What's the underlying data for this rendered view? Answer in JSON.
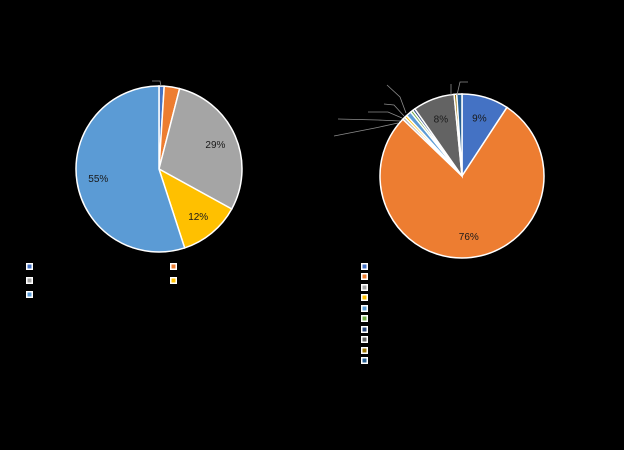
{
  "chart_data": [
    {
      "type": "pie",
      "title": "",
      "legend_position": "bottom",
      "slices": [
        {
          "label": "",
          "value": 1,
          "color": "#4472C4",
          "data_label": ""
        },
        {
          "label": "",
          "value": 3,
          "color": "#ED7D31",
          "data_label": ""
        },
        {
          "label": "",
          "value": 29,
          "color": "#A5A5A5",
          "data_label": "29%"
        },
        {
          "label": "",
          "value": 12,
          "color": "#FFC000",
          "data_label": "12%"
        },
        {
          "label": "",
          "value": 55,
          "color": "#5B9BD5",
          "data_label": "55%"
        }
      ]
    },
    {
      "type": "pie",
      "title": "",
      "legend_position": "bottom",
      "slices": [
        {
          "label": "",
          "value": 9,
          "color": "#4472C4",
          "data_label": "9%"
        },
        {
          "label": "",
          "value": 76,
          "color": "#ED7D31",
          "data_label": "76%"
        },
        {
          "label": "",
          "value": 0.5,
          "color": "#A5A5A5",
          "data_label": ""
        },
        {
          "label": "",
          "value": 0.5,
          "color": "#FFC000",
          "data_label": ""
        },
        {
          "label": "",
          "value": 1,
          "color": "#5B9BD5",
          "data_label": ""
        },
        {
          "label": "",
          "value": 0.5,
          "color": "#70AD47",
          "data_label": ""
        },
        {
          "label": "",
          "value": 0.5,
          "color": "#264478",
          "data_label": ""
        },
        {
          "label": "",
          "value": 8,
          "color": "#636363",
          "data_label": "8%"
        },
        {
          "label": "",
          "value": 0.5,
          "color": "#997300",
          "data_label": ""
        },
        {
          "label": "",
          "value": 1,
          "color": "#255E91",
          "data_label": ""
        }
      ]
    }
  ]
}
